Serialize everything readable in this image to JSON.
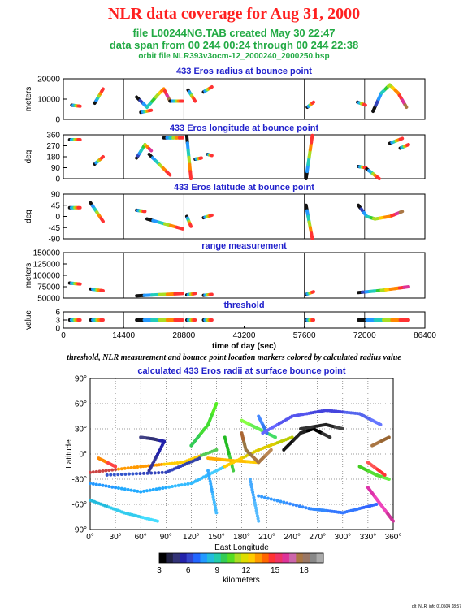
{
  "header": {
    "title": "NLR data coverage for Aug 31, 2000",
    "file_line": "file L00244NG.TAB created May 30 22:47",
    "span_line": "data span from 00 244 00:24 through 00 244 22:38",
    "orbit_line": "orbit file NLR393v3ocm-12_2000240_2000250.bsp"
  },
  "caption": "threshold, NLR measurement and bounce point location markers colored by calculated radius value",
  "footer": "plt_NLR_info 010504 18:57",
  "chart_data": [
    {
      "type": "scatter",
      "title": "433 Eros radius at bounce point",
      "ylabel": "meters",
      "xlim": [
        0,
        86400
      ],
      "ylim": [
        0,
        20000
      ],
      "yticks": [
        0,
        10000,
        20000
      ],
      "grid_x": [
        14400,
        28800,
        57600,
        72000
      ],
      "segments": [
        {
          "x": [
            2000,
            4000
          ],
          "y": [
            7000,
            6500
          ]
        },
        {
          "x": [
            7500,
            9500
          ],
          "y": [
            8000,
            15000
          ]
        },
        {
          "x": [
            17500,
            20000,
            22500,
            24000,
            25500
          ],
          "y": [
            11000,
            6000,
            12000,
            15000,
            9000
          ]
        },
        {
          "x": [
            18500,
            21000
          ],
          "y": [
            3500,
            4500
          ]
        },
        {
          "x": [
            25500,
            28500
          ],
          "y": [
            9000,
            9000
          ]
        },
        {
          "x": [
            29800,
            31500
          ],
          "y": [
            14500,
            9000
          ]
        },
        {
          "x": [
            33500,
            35500
          ],
          "y": [
            13500,
            16000
          ]
        },
        {
          "x": [
            58300,
            59800
          ],
          "y": [
            6000,
            8500
          ]
        },
        {
          "x": [
            70300,
            72200
          ],
          "y": [
            8500,
            7000
          ]
        },
        {
          "x": [
            74000,
            76000,
            78000,
            80000,
            82000
          ],
          "y": [
            4000,
            13000,
            17000,
            13000,
            6000
          ]
        }
      ]
    },
    {
      "type": "scatter",
      "title": "433 Eros longitude at bounce point",
      "ylabel": "deg",
      "xlim": [
        0,
        86400
      ],
      "ylim": [
        0,
        360
      ],
      "yticks": [
        0,
        90,
        180,
        270,
        360
      ],
      "grid_x": [
        14400,
        28800,
        57600,
        72000
      ],
      "segments": [
        {
          "x": [
            1500,
            4000
          ],
          "y": [
            320,
            320
          ]
        },
        {
          "x": [
            7500,
            9500
          ],
          "y": [
            120,
            180
          ]
        },
        {
          "x": [
            17500,
            19500,
            21000
          ],
          "y": [
            170,
            280,
            230
          ]
        },
        {
          "x": [
            20500,
            25500
          ],
          "y": [
            200,
            30
          ]
        },
        {
          "x": [
            24000,
            28500
          ],
          "y": [
            335,
            335
          ]
        },
        {
          "x": [
            29500,
            30500
          ],
          "y": [
            350,
            0
          ]
        },
        {
          "x": [
            31500,
            33000
          ],
          "y": [
            160,
            170
          ]
        },
        {
          "x": [
            34500,
            35500
          ],
          "y": [
            200,
            190
          ]
        },
        {
          "x": [
            58000,
            59500
          ],
          "y": [
            0,
            355
          ]
        },
        {
          "x": [
            70500,
            72300
          ],
          "y": [
            100,
            90
          ]
        },
        {
          "x": [
            72500,
            75500
          ],
          "y": [
            80,
            0
          ]
        },
        {
          "x": [
            78000,
            81000
          ],
          "y": [
            290,
            330
          ]
        },
        {
          "x": [
            80500,
            82500
          ],
          "y": [
            250,
            280
          ]
        }
      ]
    },
    {
      "type": "scatter",
      "title": "433 Eros latitude at bounce point",
      "ylabel": "deg",
      "xlim": [
        0,
        86400
      ],
      "ylim": [
        -90,
        90
      ],
      "yticks": [
        -90,
        -45,
        0,
        45,
        90
      ],
      "grid_x": [
        14400,
        28800,
        57600,
        72000
      ],
      "segments": [
        {
          "x": [
            1500,
            4000
          ],
          "y": [
            35,
            35
          ]
        },
        {
          "x": [
            6500,
            9500
          ],
          "y": [
            55,
            -20
          ]
        },
        {
          "x": [
            17500,
            19500
          ],
          "y": [
            25,
            20
          ]
        },
        {
          "x": [
            20000,
            28500
          ],
          "y": [
            -10,
            -50
          ]
        },
        {
          "x": [
            29500,
            30500
          ],
          "y": [
            0,
            -40
          ]
        },
        {
          "x": [
            33500,
            35500
          ],
          "y": [
            -5,
            5
          ]
        },
        {
          "x": [
            58000,
            59500
          ],
          "y": [
            45,
            -90
          ]
        },
        {
          "x": [
            70500,
            72500,
            74500,
            78000,
            81000
          ],
          "y": [
            45,
            0,
            -10,
            0,
            20
          ]
        }
      ]
    },
    {
      "type": "scatter",
      "title": "range measurement",
      "ylabel": "meters",
      "xlim": [
        0,
        86400
      ],
      "ylim": [
        50000,
        150000
      ],
      "yticks": [
        50000,
        75000,
        100000,
        125000,
        150000
      ],
      "grid_x": [
        14400,
        28800,
        57600,
        72000
      ],
      "segments": [
        {
          "x": [
            1500,
            4000
          ],
          "y": [
            83000,
            81000
          ]
        },
        {
          "x": [
            6500,
            9500
          ],
          "y": [
            70000,
            66000
          ]
        },
        {
          "x": [
            17500,
            28500
          ],
          "y": [
            55000,
            60000
          ]
        },
        {
          "x": [
            29500,
            31500
          ],
          "y": [
            57000,
            60000
          ]
        },
        {
          "x": [
            33500,
            35500
          ],
          "y": [
            56000,
            58000
          ]
        },
        {
          "x": [
            58000,
            59800
          ],
          "y": [
            58000,
            64000
          ]
        },
        {
          "x": [
            70500,
            76000,
            82500
          ],
          "y": [
            62000,
            67000,
            75000
          ]
        }
      ]
    },
    {
      "type": "scatter",
      "title": "threshold",
      "ylabel": "value",
      "xlabel": "time of day (sec)",
      "xlim": [
        0,
        86400
      ],
      "ylim": [
        0,
        6
      ],
      "yticks": [
        0,
        3,
        6
      ],
      "xticks": [
        0,
        14400,
        28800,
        43200,
        57600,
        72000,
        86400
      ],
      "grid_x": [
        14400,
        28800,
        57600,
        72000
      ],
      "segments": [
        {
          "x": [
            1500,
            4000
          ],
          "y": [
            3,
            3
          ]
        },
        {
          "x": [
            6500,
            9500
          ],
          "y": [
            3,
            3
          ]
        },
        {
          "x": [
            17500,
            28500
          ],
          "y": [
            3,
            3
          ]
        },
        {
          "x": [
            29500,
            31500
          ],
          "y": [
            3,
            3
          ]
        },
        {
          "x": [
            33500,
            35500
          ],
          "y": [
            3,
            3
          ]
        },
        {
          "x": [
            58000,
            59800
          ],
          "y": [
            3,
            3
          ]
        },
        {
          "x": [
            70500,
            82500
          ],
          "y": [
            3,
            3
          ]
        }
      ]
    },
    {
      "type": "scatter",
      "title": "calculated 433 Eros radii at surface bounce point",
      "xlabel": "East Longitude",
      "ylabel": "Latitude",
      "xlim": [
        0,
        360
      ],
      "ylim": [
        -90,
        90
      ],
      "xticks": [
        0,
        30,
        60,
        90,
        120,
        150,
        180,
        210,
        240,
        270,
        300,
        330,
        360
      ],
      "yticks": [
        -90,
        -60,
        -30,
        0,
        30,
        60,
        90
      ],
      "colorbar": {
        "label": "kilometers",
        "ticks": [
          3,
          6,
          9,
          12,
          15,
          18
        ],
        "range": [
          3,
          20
        ]
      },
      "segments": [
        {
          "x": [
            0,
            60,
            110,
            150
          ],
          "y": [
            -22,
            -15,
            -10,
            5
          ],
          "colors": [
            "#cc4444",
            "#ff9900",
            "#ffcc00",
            "#55cc55"
          ]
        },
        {
          "x": [
            10,
            30
          ],
          "y": [
            -5,
            -15
          ],
          "colors": [
            "#ff8800",
            "#ff4444"
          ]
        },
        {
          "x": [
            60,
            75,
            88
          ],
          "y": [
            20,
            18,
            15
          ],
          "colors": [
            "#444488",
            "#333377",
            "#2222aa"
          ]
        },
        {
          "x": [
            88,
            70
          ],
          "y": [
            15,
            -20
          ],
          "colors": [
            "#2222aa",
            "#333399"
          ]
        },
        {
          "x": [
            20,
            90,
            130
          ],
          "y": [
            -25,
            -22,
            -5
          ],
          "colors": [
            "#3355cc",
            "#3344bb",
            "#3344aa"
          ]
        },
        {
          "x": [
            0,
            60,
            120,
            160
          ],
          "y": [
            -35,
            -45,
            -35,
            -15
          ],
          "colors": [
            "#2299ff",
            "#22aaff",
            "#33bbff",
            "#44ccff"
          ]
        },
        {
          "x": [
            0,
            40,
            80
          ],
          "y": [
            -55,
            -70,
            -80
          ],
          "colors": [
            "#22bbdd",
            "#33ccee",
            "#44ddff"
          ]
        },
        {
          "x": [
            120,
            140,
            150
          ],
          "y": [
            10,
            35,
            60
          ],
          "colors": [
            "#33cc55",
            "#44dd33",
            "#55ee22"
          ]
        },
        {
          "x": [
            140,
            150
          ],
          "y": [
            -20,
            -70
          ],
          "colors": [
            "#33aaff",
            "#44bbff"
          ]
        },
        {
          "x": [
            160,
            170
          ],
          "y": [
            20,
            -20
          ],
          "colors": [
            "#22bb22",
            "#44cc44"
          ]
        },
        {
          "x": [
            140,
            170,
            200
          ],
          "y": [
            -5,
            -8,
            -10
          ],
          "colors": [
            "#ffaa00",
            "#ffbb00",
            "#ffcc00"
          ]
        },
        {
          "x": [
            160,
            200,
            240
          ],
          "y": [
            -15,
            5,
            20
          ],
          "colors": [
            "#ffcc00",
            "#ddcc00",
            "#bbcc00"
          ]
        },
        {
          "x": [
            180,
            185,
            200,
            215
          ],
          "y": [
            25,
            5,
            -10,
            5
          ],
          "colors": [
            "#aa6633",
            "#997744",
            "#aa7744",
            "#bb8855"
          ]
        },
        {
          "x": [
            180,
            200,
            220
          ],
          "y": [
            40,
            30,
            20
          ],
          "colors": [
            "#88ff44",
            "#66ee55",
            "#44dd66"
          ]
        },
        {
          "x": [
            200,
            210
          ],
          "y": [
            45,
            25
          ],
          "colors": [
            "#4488ff",
            "#3377ee"
          ]
        },
        {
          "x": [
            205,
            240,
            280,
            320,
            345
          ],
          "y": [
            25,
            45,
            52,
            48,
            35
          ],
          "colors": [
            "#6666ff",
            "#5555ee",
            "#4444dd",
            "#5566ee",
            "#6677ff"
          ]
        },
        {
          "x": [
            230,
            250,
            265,
            285
          ],
          "y": [
            5,
            25,
            30,
            20
          ],
          "colors": [
            "#111111",
            "#222222",
            "#000000",
            "#333333"
          ]
        },
        {
          "x": [
            250,
            280,
            300
          ],
          "y": [
            30,
            35,
            30
          ],
          "colors": [
            "#333333",
            "#222222",
            "#444444"
          ]
        },
        {
          "x": [
            200,
            260,
            300,
            340
          ],
          "y": [
            -50,
            -65,
            -70,
            -60
          ],
          "colors": [
            "#3399ff",
            "#3388ff",
            "#3377ff",
            "#3366ff"
          ]
        },
        {
          "x": [
            190,
            200
          ],
          "y": [
            -30,
            -80
          ],
          "colors": [
            "#44aaff",
            "#55bbff"
          ]
        },
        {
          "x": [
            320,
            340,
            355
          ],
          "y": [
            -15,
            -25,
            -30
          ],
          "colors": [
            "#44cc22",
            "#55dd33",
            "#66ee44"
          ]
        },
        {
          "x": [
            330,
            345,
            360
          ],
          "y": [
            -40,
            -60,
            -80
          ],
          "colors": [
            "#dd33aa",
            "#ee44bb",
            "#cc3399"
          ]
        },
        {
          "x": [
            335,
            355
          ],
          "y": [
            10,
            20
          ],
          "colors": [
            "#aa7744",
            "#996633"
          ]
        },
        {
          "x": [
            330,
            350
          ],
          "y": [
            -10,
            -25
          ],
          "colors": [
            "#ff5555",
            "#ff3333"
          ]
        }
      ]
    }
  ]
}
